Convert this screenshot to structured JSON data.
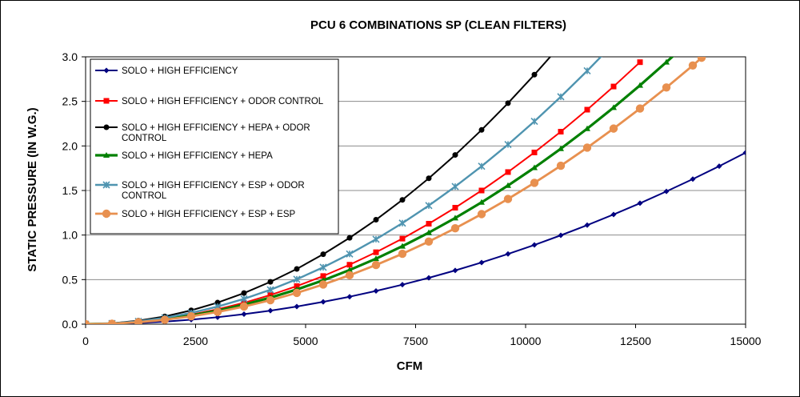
{
  "chart_data": {
    "type": "line",
    "title": "PCU 6 COMBINATIONS SP (CLEAN FILTERS)",
    "xlabel": "CFM",
    "ylabel": "STATIC PRESSURE (IN W.G.)",
    "xlim": [
      0,
      15000
    ],
    "ylim": [
      0,
      3.0
    ],
    "x_ticks": [
      "0",
      "2500",
      "5000",
      "7500",
      "10000",
      "12500",
      "15000"
    ],
    "y_ticks": [
      "0.0",
      "0.5",
      "1.0",
      "1.5",
      "2.0",
      "2.5",
      "3.0"
    ],
    "grid": "horizontal",
    "legend_position": "top-left",
    "series": [
      {
        "name": "SOLO + HIGH EFFICIENCY",
        "color": "#000080",
        "marker": "diamond",
        "x": [
          0,
          600,
          1200,
          1800,
          2400,
          3000,
          3600,
          4200,
          4800,
          5400,
          6000,
          6600,
          7200,
          7800,
          8400,
          9000,
          9600,
          10200,
          10800,
          11400,
          12000,
          12600,
          13200,
          13800,
          14400,
          15000
        ],
        "values": [
          0.0,
          0.003,
          0.012,
          0.028,
          0.05,
          0.078,
          0.112,
          0.152,
          0.198,
          0.25,
          0.308,
          0.373,
          0.443,
          0.52,
          0.603,
          0.692,
          0.788,
          0.889,
          0.997,
          1.111,
          1.231,
          1.357,
          1.49,
          1.628,
          1.773,
          1.924
        ]
      },
      {
        "name": "SOLO + HIGH EFFICIENCY + ODOR CONTROL",
        "color": "#ff0000",
        "marker": "square",
        "x": [
          0,
          600,
          1200,
          1800,
          2400,
          3000,
          3600,
          4200,
          4800,
          5400,
          6000,
          6600,
          7200,
          7800,
          8400,
          9000,
          9600,
          10200,
          10800,
          11400,
          12000,
          12600
        ],
        "values": [
          0.0,
          0.007,
          0.027,
          0.06,
          0.107,
          0.167,
          0.24,
          0.327,
          0.427,
          0.54,
          0.667,
          0.807,
          0.96,
          1.127,
          1.307,
          1.5,
          1.707,
          1.927,
          2.16,
          2.407,
          2.667,
          2.94
        ]
      },
      {
        "name": "SOLO + HIGH EFFICIENCY + HEPA + ODOR CONTROL",
        "color": "#000000",
        "marker": "circle",
        "x": [
          0,
          600,
          1200,
          1800,
          2400,
          3000,
          3600,
          4200,
          4800,
          5400,
          6000,
          6600,
          7200,
          7800,
          8400,
          9000,
          9600,
          10200,
          10650
        ],
        "values": [
          0.0,
          0.0097,
          0.039,
          0.087,
          0.155,
          0.242,
          0.349,
          0.475,
          0.62,
          0.785,
          0.969,
          1.172,
          1.395,
          1.637,
          1.899,
          2.18,
          2.48,
          2.8,
          3.05
        ]
      },
      {
        "name": "SOLO + HIGH EFFICIENCY + HEPA",
        "color": "#008000",
        "marker": "triangle",
        "x": [
          0,
          600,
          1200,
          1800,
          2400,
          3000,
          3600,
          4200,
          4800,
          5400,
          6000,
          6600,
          7200,
          7800,
          8400,
          9000,
          9600,
          10200,
          10800,
          11400,
          12000,
          12600,
          13200,
          13400
        ],
        "values": [
          0.0,
          0.0061,
          0.024,
          0.055,
          0.097,
          0.152,
          0.219,
          0.298,
          0.389,
          0.492,
          0.608,
          0.735,
          0.875,
          1.027,
          1.191,
          1.367,
          1.556,
          1.756,
          1.969,
          2.194,
          2.431,
          2.68,
          2.941,
          3.03
        ]
      },
      {
        "name": "SOLO + HIGH EFFICIENCY + ESP + ODOR CONTROL",
        "color": "#4f94b0",
        "marker": "star",
        "x": [
          0,
          600,
          1200,
          1800,
          2400,
          3000,
          3600,
          4200,
          4800,
          5400,
          6000,
          6600,
          7200,
          7800,
          8400,
          9000,
          9600,
          10200,
          10800,
          11400,
          11750
        ],
        "values": [
          0.0,
          0.0079,
          0.032,
          0.071,
          0.126,
          0.197,
          0.284,
          0.386,
          0.504,
          0.638,
          0.788,
          0.953,
          1.134,
          1.331,
          1.544,
          1.772,
          2.016,
          2.276,
          2.552,
          2.843,
          3.02
        ]
      },
      {
        "name": "SOLO + HIGH EFFICIENCY + ESP + ESP",
        "color": "#e8904f",
        "marker": "big-circle",
        "x": [
          0,
          600,
          1200,
          1800,
          2400,
          3000,
          3600,
          4200,
          4800,
          5400,
          6000,
          6600,
          7200,
          7800,
          8400,
          9000,
          9600,
          10200,
          10800,
          11400,
          12000,
          12600,
          13200,
          13800,
          14000
        ],
        "values": [
          0.0,
          0.0055,
          0.022,
          0.049,
          0.088,
          0.137,
          0.198,
          0.269,
          0.351,
          0.445,
          0.549,
          0.664,
          0.79,
          0.927,
          1.076,
          1.235,
          1.405,
          1.586,
          1.778,
          1.981,
          2.195,
          2.42,
          2.656,
          2.903,
          2.99
        ]
      }
    ],
    "legend_lines": [
      [
        "SOLO + HIGH EFFICIENCY"
      ],
      [
        "SOLO + HIGH EFFICIENCY + ODOR CONTROL"
      ],
      [
        "SOLO + HIGH EFFICIENCY + HEPA + ODOR",
        "CONTROL"
      ],
      [
        "SOLO + HIGH EFFICIENCY + HEPA"
      ],
      [
        "SOLO + HIGH EFFICIENCY + ESP + ODOR",
        "CONTROL"
      ],
      [
        "SOLO + HIGH EFFICIENCY + ESP + ESP"
      ]
    ]
  }
}
